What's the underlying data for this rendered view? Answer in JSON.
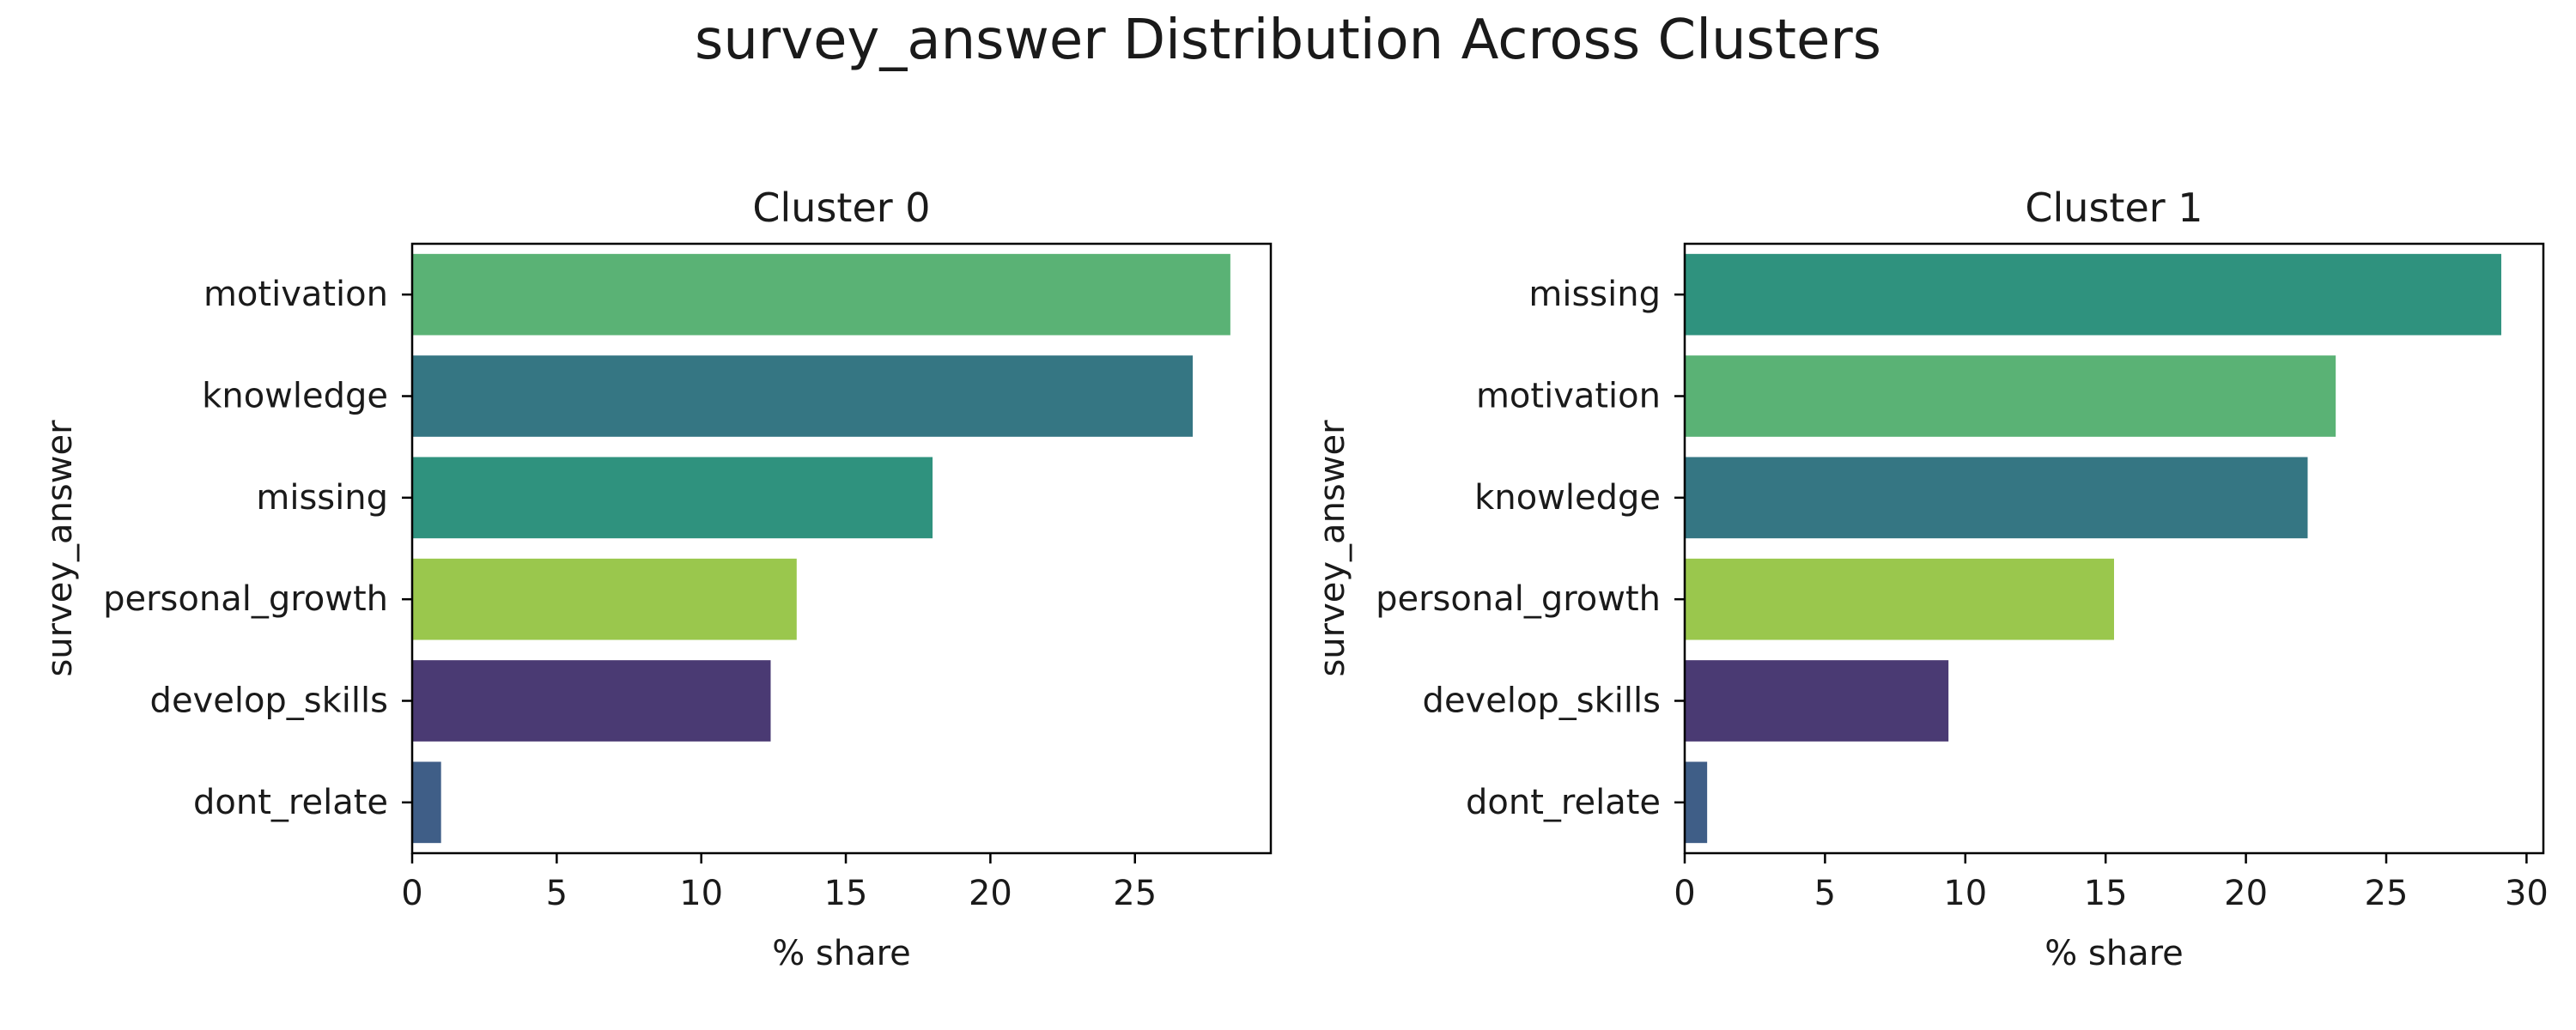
{
  "figure": {
    "title": "survey_answer Distribution Across Clusters"
  },
  "chart_data": [
    {
      "type": "bar",
      "orientation": "horizontal",
      "title": "Cluster 0",
      "xlabel": "% share",
      "ylabel": "survey_answer",
      "categories": [
        "motivation",
        "knowledge",
        "missing",
        "personal_growth",
        "develop_skills",
        "dont_relate"
      ],
      "values": [
        28.3,
        27.0,
        18.0,
        13.3,
        12.4,
        1.0
      ],
      "colors": [
        "#5ab275",
        "#357683",
        "#2f927e",
        "#9ac74d",
        "#4a3a73",
        "#3f5e87"
      ],
      "xlim": [
        0,
        29.7
      ],
      "xticks": [
        0,
        5,
        10,
        15,
        20,
        25
      ],
      "grid": false,
      "legend": "none"
    },
    {
      "type": "bar",
      "orientation": "horizontal",
      "title": "Cluster 1",
      "xlabel": "% share",
      "ylabel": "survey_answer",
      "categories": [
        "missing",
        "motivation",
        "knowledge",
        "personal_growth",
        "develop_skills",
        "dont_relate"
      ],
      "values": [
        29.1,
        23.2,
        22.2,
        15.3,
        9.4,
        0.8
      ],
      "colors": [
        "#2f927e",
        "#5ab275",
        "#357683",
        "#9ac74d",
        "#4a3a73",
        "#3f5e87"
      ],
      "xlim": [
        0,
        30.6
      ],
      "xticks": [
        0,
        5,
        10,
        15,
        20,
        25,
        30
      ],
      "grid": false,
      "legend": "none"
    }
  ]
}
